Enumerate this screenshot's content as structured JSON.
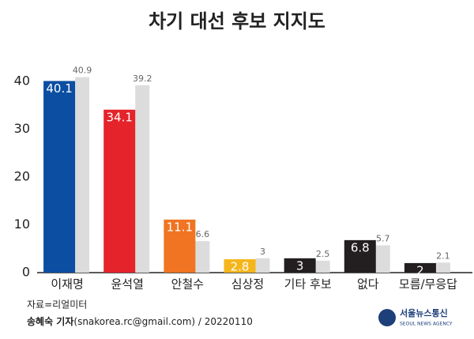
{
  "chart_data": {
    "type": "bar",
    "title": "차기 대선 후보 지지도",
    "categories": [
      "이재명",
      "윤석열",
      "안철수",
      "심상정",
      "기타 후보",
      "없다",
      "모름/무응답"
    ],
    "series": [
      {
        "colors": [
          "#0b4ea2",
          "#e5232a",
          "#f07421",
          "#f5b61b",
          "#231f20",
          "#231f20",
          "#231f20"
        ],
        "values": [
          40.1,
          34.1,
          11.1,
          2.8,
          3.0,
          6.8,
          2.0
        ]
      },
      {
        "color": "#dcdcdc",
        "values": [
          40.9,
          39.2,
          6.6,
          3.0,
          2.5,
          5.7,
          2.1
        ]
      }
    ],
    "ylim": [
      0,
      42
    ],
    "yticks": [
      0,
      10,
      20,
      30,
      40
    ],
    "grid": false,
    "source": "자료=리얼미터",
    "reporter": "송혜숙 기자",
    "contact": "(snakorea.rc@gmail.com) / 20220110",
    "logo": "서울뉴스통신",
    "logo_sub": "SEOUL NEWS AGENCY"
  }
}
